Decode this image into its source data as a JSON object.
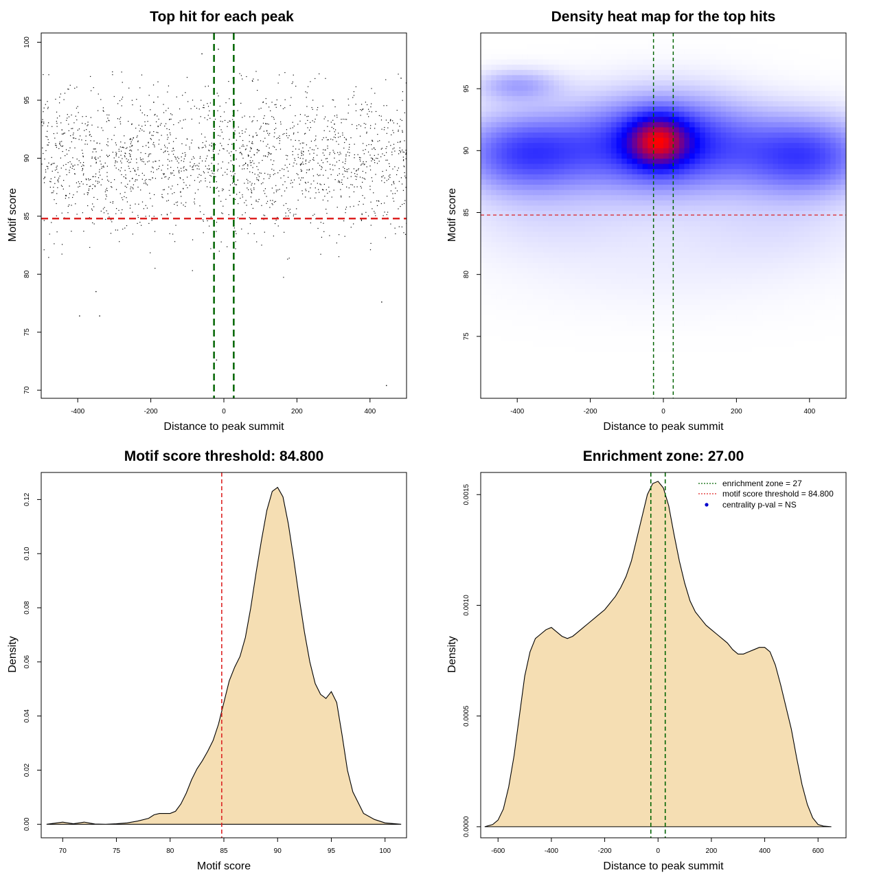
{
  "colors": {
    "zone_line": "#006400",
    "threshold_line": "#dd2222",
    "density_fill": "#f5deb3",
    "scatter_point": "#000000",
    "heat_low": "#ffffff",
    "heat_mid": "#0000ff",
    "heat_high": "#ff0000",
    "legend_point": "#0000cc"
  },
  "chart_data": [
    {
      "type": "scatter",
      "title": "Top hit for each peak",
      "xlabel": "Distance to peak summit",
      "ylabel": "Motif score",
      "xlim": [
        -500,
        500
      ],
      "ylim": [
        69.3,
        100.8
      ],
      "xticks": [
        -400,
        -200,
        0,
        200,
        400
      ],
      "yticks": [
        70,
        75,
        80,
        85,
        90,
        95,
        100
      ],
      "grid": false,
      "threshold": 84.8,
      "zone": [
        -27,
        27
      ],
      "points_distribution": {
        "count": 1900,
        "score_mean": 90.0,
        "score_sd": 3.1,
        "x_range": [
          -500,
          500
        ]
      },
      "notable_points": [
        {
          "x": -20,
          "y": 72.6
        },
        {
          "x": 445,
          "y": 70.4
        },
        {
          "x": -395,
          "y": 76.4
        },
        {
          "x": -340,
          "y": 76.4
        },
        {
          "x": -350,
          "y": 78.5
        },
        {
          "x": 432,
          "y": 77.6
        },
        {
          "x": -60,
          "y": 99.0
        },
        {
          "x": -15,
          "y": 99.4
        },
        {
          "x": 485,
          "y": 96.9
        }
      ]
    },
    {
      "type": "heatmap",
      "title": "Density heat map for the top hits",
      "xlabel": "Distance to peak summit",
      "ylabel": "Motif score",
      "xlim": [
        -500,
        500
      ],
      "ylim": [
        70,
        99.5
      ],
      "xticks": [
        -400,
        -200,
        0,
        200,
        400
      ],
      "yticks": [
        75,
        80,
        85,
        90,
        95
      ],
      "threshold": 84.8,
      "zone": [
        -27,
        27
      ],
      "density_components": [
        {
          "x": 0,
          "y": 90.6,
          "sx": 170,
          "sy": 2.6,
          "w": 1.0
        },
        {
          "x": -15,
          "y": 90.8,
          "sx": 55,
          "sy": 1.4,
          "w": 0.9
        },
        {
          "x": -380,
          "y": 89.8,
          "sx": 130,
          "sy": 2.2,
          "w": 0.75
        },
        {
          "x": 390,
          "y": 89.6,
          "sx": 130,
          "sy": 2.2,
          "w": 0.75
        },
        {
          "x": -400,
          "y": 95.3,
          "sx": 80,
          "sy": 0.9,
          "w": 0.35
        },
        {
          "x": 300,
          "y": 84.0,
          "sx": 200,
          "sy": 2.4,
          "w": 0.12
        },
        {
          "x": -300,
          "y": 84.5,
          "sx": 200,
          "sy": 2.4,
          "w": 0.12
        },
        {
          "x": 0,
          "y": 80.0,
          "sx": 300,
          "sy": 2.5,
          "w": 0.05
        }
      ]
    },
    {
      "type": "area",
      "title": "Motif score threshold: 84.800",
      "xlabel": "Motif score",
      "ylabel": "Density",
      "xlim": [
        68,
        102
      ],
      "ylim": [
        -0.005,
        0.13
      ],
      "xticks": [
        70,
        75,
        80,
        85,
        90,
        95,
        100
      ],
      "yticks": [
        "0.00",
        "0.02",
        "0.04",
        "0.06",
        "0.08",
        "0.10",
        "0.12"
      ],
      "threshold": 84.8,
      "x": [
        68.5,
        70,
        71,
        72,
        73,
        74,
        75,
        76,
        77,
        78,
        78.5,
        79,
        79.5,
        80,
        80.5,
        81,
        81.5,
        82,
        82.5,
        83,
        83.5,
        84,
        84.5,
        85,
        85.5,
        86,
        86.5,
        87,
        87.5,
        88,
        88.5,
        89,
        89.5,
        90,
        90.5,
        91,
        91.5,
        92,
        92.5,
        93,
        93.5,
        94,
        94.5,
        95,
        95.5,
        96,
        96.5,
        97,
        97.5,
        98,
        99,
        100,
        101.5
      ],
      "values": [
        0.0,
        0.0008,
        0.0002,
        0.0008,
        0.0001,
        0.0,
        0.0002,
        0.0005,
        0.0012,
        0.0022,
        0.0035,
        0.004,
        0.004,
        0.004,
        0.0048,
        0.0075,
        0.0115,
        0.0165,
        0.0205,
        0.0235,
        0.027,
        0.031,
        0.037,
        0.045,
        0.053,
        0.058,
        0.062,
        0.069,
        0.08,
        0.093,
        0.105,
        0.116,
        0.123,
        0.1245,
        0.121,
        0.111,
        0.098,
        0.084,
        0.071,
        0.06,
        0.052,
        0.048,
        0.0465,
        0.049,
        0.045,
        0.033,
        0.02,
        0.012,
        0.008,
        0.004,
        0.0018,
        0.0005,
        0.0
      ]
    },
    {
      "type": "area",
      "title": "Enrichment zone: 27.00",
      "xlabel": "Distance to peak summit",
      "ylabel": "Density",
      "xlim": [
        -665,
        705
      ],
      "ylim": [
        -5e-05,
        0.0016
      ],
      "xticks": [
        -600,
        -400,
        -200,
        0,
        200,
        400,
        600
      ],
      "yticks": [
        "0.0000",
        "0.0005",
        "0.0010",
        "0.0015"
      ],
      "zone": [
        -27,
        27
      ],
      "x": [
        -650,
        -620,
        -600,
        -580,
        -560,
        -540,
        -520,
        -500,
        -480,
        -460,
        -440,
        -420,
        -400,
        -380,
        -360,
        -340,
        -320,
        -300,
        -280,
        -260,
        -240,
        -220,
        -200,
        -180,
        -160,
        -140,
        -120,
        -100,
        -80,
        -60,
        -40,
        -20,
        0,
        20,
        40,
        60,
        80,
        100,
        120,
        140,
        160,
        180,
        200,
        220,
        240,
        260,
        280,
        300,
        320,
        340,
        360,
        380,
        400,
        420,
        440,
        460,
        480,
        500,
        520,
        540,
        560,
        580,
        600,
        620,
        650
      ],
      "values": [
        0.0,
        1e-05,
        3e-05,
        8e-05,
        0.00018,
        0.00032,
        0.0005,
        0.00068,
        0.00079,
        0.00085,
        0.00087,
        0.00089,
        0.0009,
        0.00088,
        0.00086,
        0.00085,
        0.00086,
        0.00088,
        0.0009,
        0.00092,
        0.00094,
        0.00096,
        0.00098,
        0.00101,
        0.00104,
        0.00108,
        0.00113,
        0.0012,
        0.0013,
        0.0014,
        0.0015,
        0.00155,
        0.00156,
        0.00153,
        0.00145,
        0.00132,
        0.0012,
        0.0011,
        0.00102,
        0.00097,
        0.00094,
        0.00091,
        0.00089,
        0.00087,
        0.00085,
        0.00083,
        0.0008,
        0.00078,
        0.00078,
        0.00079,
        0.0008,
        0.00081,
        0.00081,
        0.00079,
        0.00073,
        0.00064,
        0.00054,
        0.00044,
        0.00031,
        0.00019,
        0.0001,
        4e-05,
        1e-05,
        3e-06,
        0.0
      ]
    }
  ],
  "legend": {
    "items": [
      {
        "label": "enrichment zone = 27",
        "kind": "line",
        "color": "#006400"
      },
      {
        "label": "motif score threshold = 84.800",
        "kind": "line",
        "color": "#dd2222"
      },
      {
        "label": "centrality p-val = NS",
        "kind": "point",
        "color": "#0000cc"
      }
    ]
  }
}
